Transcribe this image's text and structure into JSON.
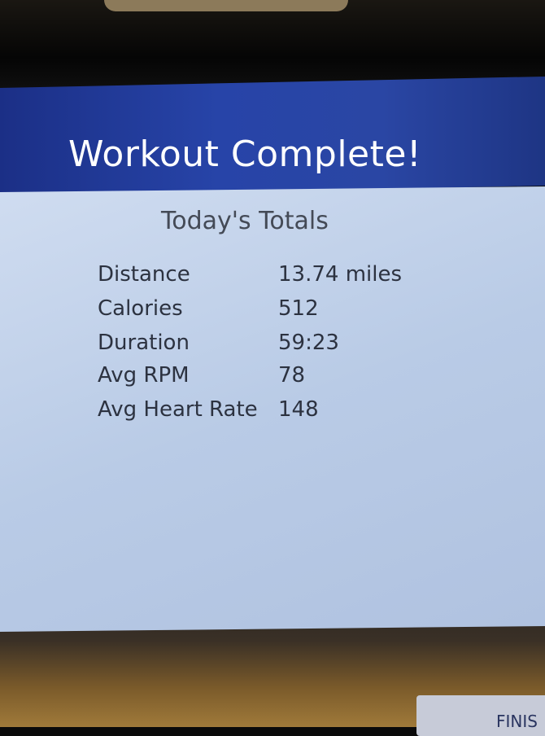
{
  "header": {
    "title": "Workout Complete!"
  },
  "totals": {
    "heading": "Today's Totals",
    "rows": [
      {
        "label": "Distance",
        "value": "13.74 miles"
      },
      {
        "label": "Calories",
        "value": "512"
      },
      {
        "label": "Duration",
        "value": "59:23"
      },
      {
        "label": "Avg RPM",
        "value": "78"
      },
      {
        "label": "Avg Heart Rate",
        "value": "148"
      }
    ]
  },
  "footer": {
    "finish_label": "FINIS"
  },
  "colors": {
    "header": "#2744a8",
    "panel": "#c4d4ec"
  }
}
